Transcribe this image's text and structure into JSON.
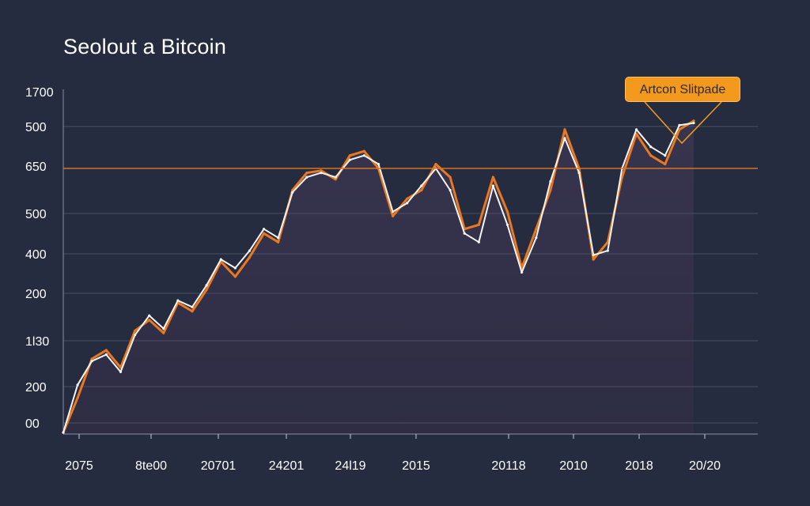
{
  "title": "Seolout a Bitcoin",
  "callout": {
    "label": "Artcon Slitpade"
  },
  "colors": {
    "background": "#262c3f",
    "series_orange": "#e9781f",
    "series_white": "#f4f4f4",
    "reference_line": "#d9741f",
    "grid": "#4a4f66",
    "callout_fill": "#f39a1e"
  },
  "chart_data": {
    "type": "line",
    "title": "Seolout a Bitcoin",
    "xlabel": "",
    "ylabel": "",
    "grid": true,
    "y_tick_labels": [
      "1700",
      "500",
      "650",
      "500",
      "400",
      "200",
      "1l30",
      "200",
      "00"
    ],
    "x_tick_labels": [
      "2075",
      "8te00",
      "20701",
      "24201",
      "24l19",
      "2015",
      "20118",
      "2010",
      "2018",
      "20/20"
    ],
    "reference_line": {
      "y": 650,
      "label": "650"
    },
    "annotation": {
      "text": "Artcon Slitpade",
      "points_to": "peak near the last x tick"
    },
    "series": [
      {
        "color": "#e9781f",
        "values": [
          0,
          80,
          170,
          190,
          150,
          235,
          260,
          230,
          300,
          280,
          330,
          395,
          360,
          405,
          460,
          440,
          560,
          600,
          605,
          585,
          640,
          650,
          610,
          500,
          540,
          560,
          620,
          590,
          470,
          480,
          590,
          510,
          380,
          470,
          560,
          700,
          610,
          400,
          440,
          590,
          690,
          640,
          620,
          700,
          720
        ]
      },
      {
        "color": "#f4f4f4",
        "values": [
          0,
          110,
          165,
          180,
          140,
          225,
          270,
          240,
          305,
          290,
          340,
          400,
          380,
          420,
          470,
          450,
          555,
          590,
          600,
          590,
          630,
          640,
          620,
          510,
          530,
          570,
          610,
          560,
          460,
          440,
          570,
          480,
          370,
          450,
          580,
          680,
          600,
          410,
          420,
          610,
          700,
          660,
          640,
          710,
          715
        ]
      }
    ]
  }
}
